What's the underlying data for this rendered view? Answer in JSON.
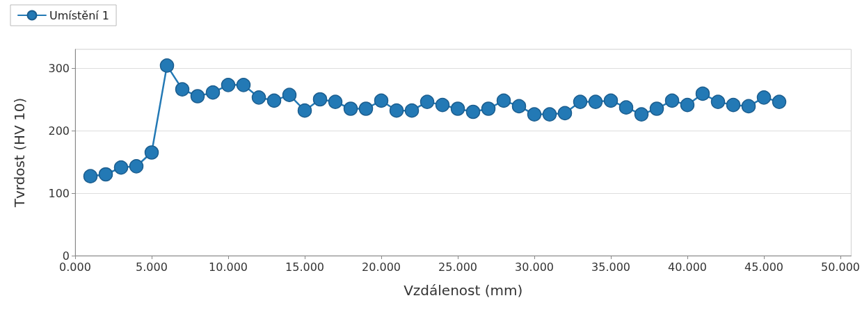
{
  "chart_data": {
    "type": "line",
    "xlabel": "Vzdálenost (mm)",
    "ylabel": "Tvrdost (HV 10)",
    "x": [
      1,
      2,
      3,
      4,
      5,
      6,
      7,
      8,
      9,
      10,
      11,
      12,
      13,
      14,
      15,
      16,
      17,
      18,
      19,
      20,
      21,
      22,
      23,
      24,
      25,
      26,
      27,
      28,
      29,
      30,
      31,
      32,
      33,
      34,
      35,
      36,
      37,
      38,
      39,
      40,
      41,
      42,
      43,
      44,
      45,
      46
    ],
    "series": [
      {
        "name": "Umístění 1",
        "color": "#2379b5",
        "values": [
          127,
          130,
          141,
          143,
          165,
          304,
          266,
          255,
          261,
          273,
          273,
          253,
          248,
          257,
          232,
          250,
          246,
          235,
          235,
          248,
          232,
          232,
          246,
          241,
          235,
          230,
          235,
          248,
          239,
          226,
          226,
          228,
          246,
          246,
          248,
          237,
          226,
          235,
          248,
          241,
          259,
          246,
          241,
          239,
          253,
          246
        ]
      }
    ],
    "xlim": [
      0,
      50.7
    ],
    "xticks": [
      {
        "value": 0,
        "label": "0.000"
      },
      {
        "value": 5,
        "label": "5.000"
      },
      {
        "value": 10,
        "label": "10.000"
      },
      {
        "value": 15,
        "label": "15.000"
      },
      {
        "value": 20,
        "label": "20.000"
      },
      {
        "value": 25,
        "label": "25.000"
      },
      {
        "value": 30,
        "label": "30.000"
      },
      {
        "value": 35,
        "label": "35.000"
      },
      {
        "value": 40,
        "label": "40.000"
      },
      {
        "value": 45,
        "label": "45.000"
      },
      {
        "value": 50,
        "label": "50.000"
      }
    ],
    "ylim": [
      0,
      330
    ],
    "yticks": [
      0,
      100,
      200,
      300
    ],
    "grid": "y",
    "legend": "top left",
    "marker": "circle",
    "line_style": "solid"
  }
}
